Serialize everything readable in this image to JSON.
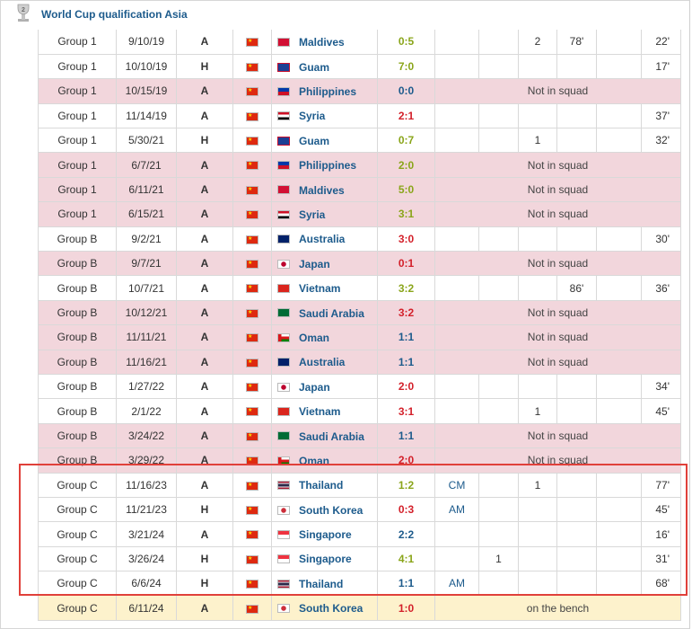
{
  "section": {
    "title": "World Cup qualification Asia",
    "icon": "trophy-icon"
  },
  "colors": {
    "win": "#8aa51a",
    "draw": "#1d5b8c",
    "loss": "#d3202a",
    "not_in_squad_bg": "#f2d6dc",
    "bench_bg": "#fdf2cc",
    "highlight_border": "#e0403a"
  },
  "matches": [
    {
      "group": "Group 1",
      "date": "9/10/19",
      "venue": "A",
      "opponent": "Maldives",
      "opp_flag": "maldives",
      "result": "0:5",
      "outcome": "win",
      "status": "",
      "pos": "",
      "goals": "2",
      "assists": "78'",
      "c9": "",
      "c10": "",
      "minutes": "22'",
      "row": "white"
    },
    {
      "group": "Group 1",
      "date": "10/10/19",
      "venue": "H",
      "opponent": "Guam",
      "opp_flag": "guam",
      "result": "7:0",
      "outcome": "win",
      "status": "",
      "pos": "",
      "goals": "",
      "assists": "",
      "c9": "",
      "c10": "",
      "minutes": "17'",
      "row": "white"
    },
    {
      "group": "Group 1",
      "date": "10/15/19",
      "venue": "A",
      "opponent": "Philippines",
      "opp_flag": "philippines",
      "result": "0:0",
      "outcome": "draw",
      "status": "Not in squad",
      "row": "pink"
    },
    {
      "group": "Group 1",
      "date": "11/14/19",
      "venue": "A",
      "opponent": "Syria",
      "opp_flag": "syria",
      "result": "2:1",
      "outcome": "loss",
      "status": "",
      "pos": "",
      "goals": "",
      "assists": "",
      "c9": "",
      "c10": "",
      "minutes": "37'",
      "row": "white"
    },
    {
      "group": "Group 1",
      "date": "5/30/21",
      "venue": "H",
      "opponent": "Guam",
      "opp_flag": "guam",
      "result": "0:7",
      "outcome": "win",
      "status": "",
      "pos": "",
      "goals": "1",
      "assists": "",
      "c9": "",
      "c10": "",
      "minutes": "32'",
      "row": "white"
    },
    {
      "group": "Group 1",
      "date": "6/7/21",
      "venue": "A",
      "opponent": "Philippines",
      "opp_flag": "philippines",
      "result": "2:0",
      "outcome": "win",
      "status": "Not in squad",
      "row": "pink"
    },
    {
      "group": "Group 1",
      "date": "6/11/21",
      "venue": "A",
      "opponent": "Maldives",
      "opp_flag": "maldives",
      "result": "5:0",
      "outcome": "win",
      "status": "Not in squad",
      "row": "pink"
    },
    {
      "group": "Group 1",
      "date": "6/15/21",
      "venue": "A",
      "opponent": "Syria",
      "opp_flag": "syria",
      "result": "3:1",
      "outcome": "win",
      "status": "Not in squad",
      "row": "pink"
    },
    {
      "group": "Group B",
      "date": "9/2/21",
      "venue": "A",
      "opponent": "Australia",
      "opp_flag": "australia",
      "result": "3:0",
      "outcome": "loss",
      "status": "",
      "pos": "",
      "goals": "",
      "assists": "",
      "c9": "",
      "c10": "",
      "minutes": "30'",
      "row": "white"
    },
    {
      "group": "Group B",
      "date": "9/7/21",
      "venue": "A",
      "opponent": "Japan",
      "opp_flag": "japan",
      "result": "0:1",
      "outcome": "loss",
      "status": "Not in squad",
      "row": "pink"
    },
    {
      "group": "Group B",
      "date": "10/7/21",
      "venue": "A",
      "opponent": "Vietnam",
      "opp_flag": "vietnam",
      "result": "3:2",
      "outcome": "win",
      "status": "",
      "pos": "",
      "goals": "",
      "assists": "86'",
      "c9": "",
      "c10": "",
      "minutes": "36'",
      "row": "white"
    },
    {
      "group": "Group B",
      "date": "10/12/21",
      "venue": "A",
      "opponent": "Saudi Arabia",
      "opp_flag": "saudi",
      "result": "3:2",
      "outcome": "loss",
      "status": "Not in squad",
      "row": "pink"
    },
    {
      "group": "Group B",
      "date": "11/11/21",
      "venue": "A",
      "opponent": "Oman",
      "opp_flag": "oman",
      "result": "1:1",
      "outcome": "draw",
      "status": "Not in squad",
      "row": "pink"
    },
    {
      "group": "Group B",
      "date": "11/16/21",
      "venue": "A",
      "opponent": "Australia",
      "opp_flag": "australia",
      "result": "1:1",
      "outcome": "draw",
      "status": "Not in squad",
      "row": "pink"
    },
    {
      "group": "Group B",
      "date": "1/27/22",
      "venue": "A",
      "opponent": "Japan",
      "opp_flag": "japan",
      "result": "2:0",
      "outcome": "loss",
      "status": "",
      "pos": "",
      "goals": "",
      "assists": "",
      "c9": "",
      "c10": "",
      "minutes": "34'",
      "row": "white"
    },
    {
      "group": "Group B",
      "date": "2/1/22",
      "venue": "A",
      "opponent": "Vietnam",
      "opp_flag": "vietnam",
      "result": "3:1",
      "outcome": "loss",
      "status": "",
      "pos": "",
      "goals": "1",
      "assists": "",
      "c9": "",
      "c10": "",
      "minutes": "45'",
      "row": "white"
    },
    {
      "group": "Group B",
      "date": "3/24/22",
      "venue": "A",
      "opponent": "Saudi Arabia",
      "opp_flag": "saudi",
      "result": "1:1",
      "outcome": "draw",
      "status": "Not in squad",
      "row": "pink"
    },
    {
      "group": "Group B",
      "date": "3/29/22",
      "venue": "A",
      "opponent": "Oman",
      "opp_flag": "oman",
      "result": "2:0",
      "outcome": "loss",
      "status": "Not in squad",
      "row": "pink"
    },
    {
      "group": "Group C",
      "date": "11/16/23",
      "venue": "A",
      "opponent": "Thailand",
      "opp_flag": "thailand",
      "result": "1:2",
      "outcome": "win",
      "status": "",
      "pos": "CM",
      "goals": "1",
      "assists": "",
      "c9": "",
      "c10": "",
      "minutes": "77'",
      "row": "white"
    },
    {
      "group": "Group C",
      "date": "11/21/23",
      "venue": "H",
      "opponent": "South Korea",
      "opp_flag": "korea",
      "result": "0:3",
      "outcome": "loss",
      "status": "",
      "pos": "AM",
      "goals": "",
      "assists": "",
      "c9": "",
      "c10": "",
      "minutes": "45'",
      "row": "white"
    },
    {
      "group": "Group C",
      "date": "3/21/24",
      "venue": "A",
      "opponent": "Singapore",
      "opp_flag": "singapore",
      "result": "2:2",
      "outcome": "draw",
      "status": "",
      "pos": "",
      "goals": "",
      "assists": "",
      "c9": "",
      "c10": "",
      "minutes": "16'",
      "row": "white"
    },
    {
      "group": "Group C",
      "date": "3/26/24",
      "venue": "H",
      "opponent": "Singapore",
      "opp_flag": "singapore",
      "result": "4:1",
      "outcome": "win",
      "status": "",
      "pos": "",
      "goals": "",
      "assists": "",
      "c9": "1",
      "c10": "",
      "minutes": "31'",
      "row": "white"
    },
    {
      "group": "Group C",
      "date": "6/6/24",
      "venue": "H",
      "opponent": "Thailand",
      "opp_flag": "thailand",
      "result": "1:1",
      "outcome": "draw",
      "status": "",
      "pos": "AM",
      "goals": "",
      "assists": "",
      "c9": "",
      "c10": "",
      "minutes": "68'",
      "row": "white"
    },
    {
      "group": "Group C",
      "date": "6/11/24",
      "venue": "A",
      "opponent": "South Korea",
      "opp_flag": "korea",
      "result": "1:0",
      "outcome": "loss",
      "status": "on the bench",
      "row": "yellow"
    }
  ]
}
